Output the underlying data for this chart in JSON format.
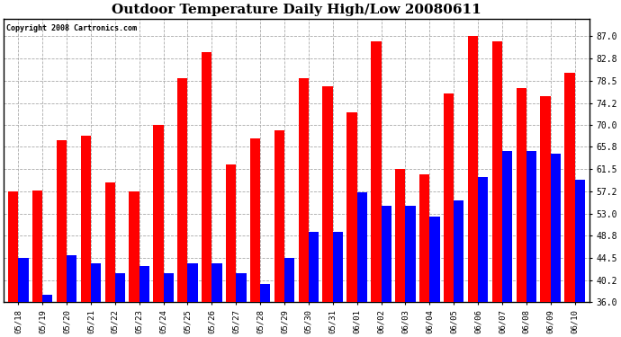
{
  "title": "Outdoor Temperature Daily High/Low 20080611",
  "copyright": "Copyright 2008 Cartronics.com",
  "dates": [
    "05/18",
    "05/19",
    "05/20",
    "05/21",
    "05/22",
    "05/23",
    "05/24",
    "05/25",
    "05/26",
    "05/27",
    "05/28",
    "05/29",
    "05/30",
    "05/31",
    "06/01",
    "06/02",
    "06/03",
    "06/04",
    "06/05",
    "06/06",
    "06/07",
    "06/08",
    "06/09",
    "06/10"
  ],
  "highs": [
    57.2,
    57.5,
    67.0,
    68.0,
    59.0,
    57.2,
    70.0,
    79.0,
    84.0,
    62.5,
    67.5,
    69.0,
    79.0,
    77.5,
    72.5,
    86.0,
    61.5,
    60.5,
    76.0,
    87.0,
    86.0,
    77.0,
    75.5,
    80.0
  ],
  "lows": [
    44.5,
    37.5,
    45.0,
    43.5,
    41.5,
    43.0,
    41.5,
    43.5,
    43.5,
    41.5,
    39.5,
    44.5,
    49.5,
    49.5,
    57.0,
    54.5,
    54.5,
    52.5,
    55.5,
    60.0,
    65.0,
    65.0,
    64.5,
    59.5
  ],
  "high_color": "#ff0000",
  "low_color": "#0000ff",
  "ylim": [
    36.0,
    90.4
  ],
  "yticks": [
    36.0,
    40.2,
    44.5,
    48.8,
    53.0,
    57.2,
    61.5,
    65.8,
    70.0,
    74.2,
    78.5,
    82.8,
    87.0
  ],
  "background_color": "#ffffff",
  "grid_color": "#aaaaaa",
  "title_fontsize": 11,
  "bar_width": 0.42
}
